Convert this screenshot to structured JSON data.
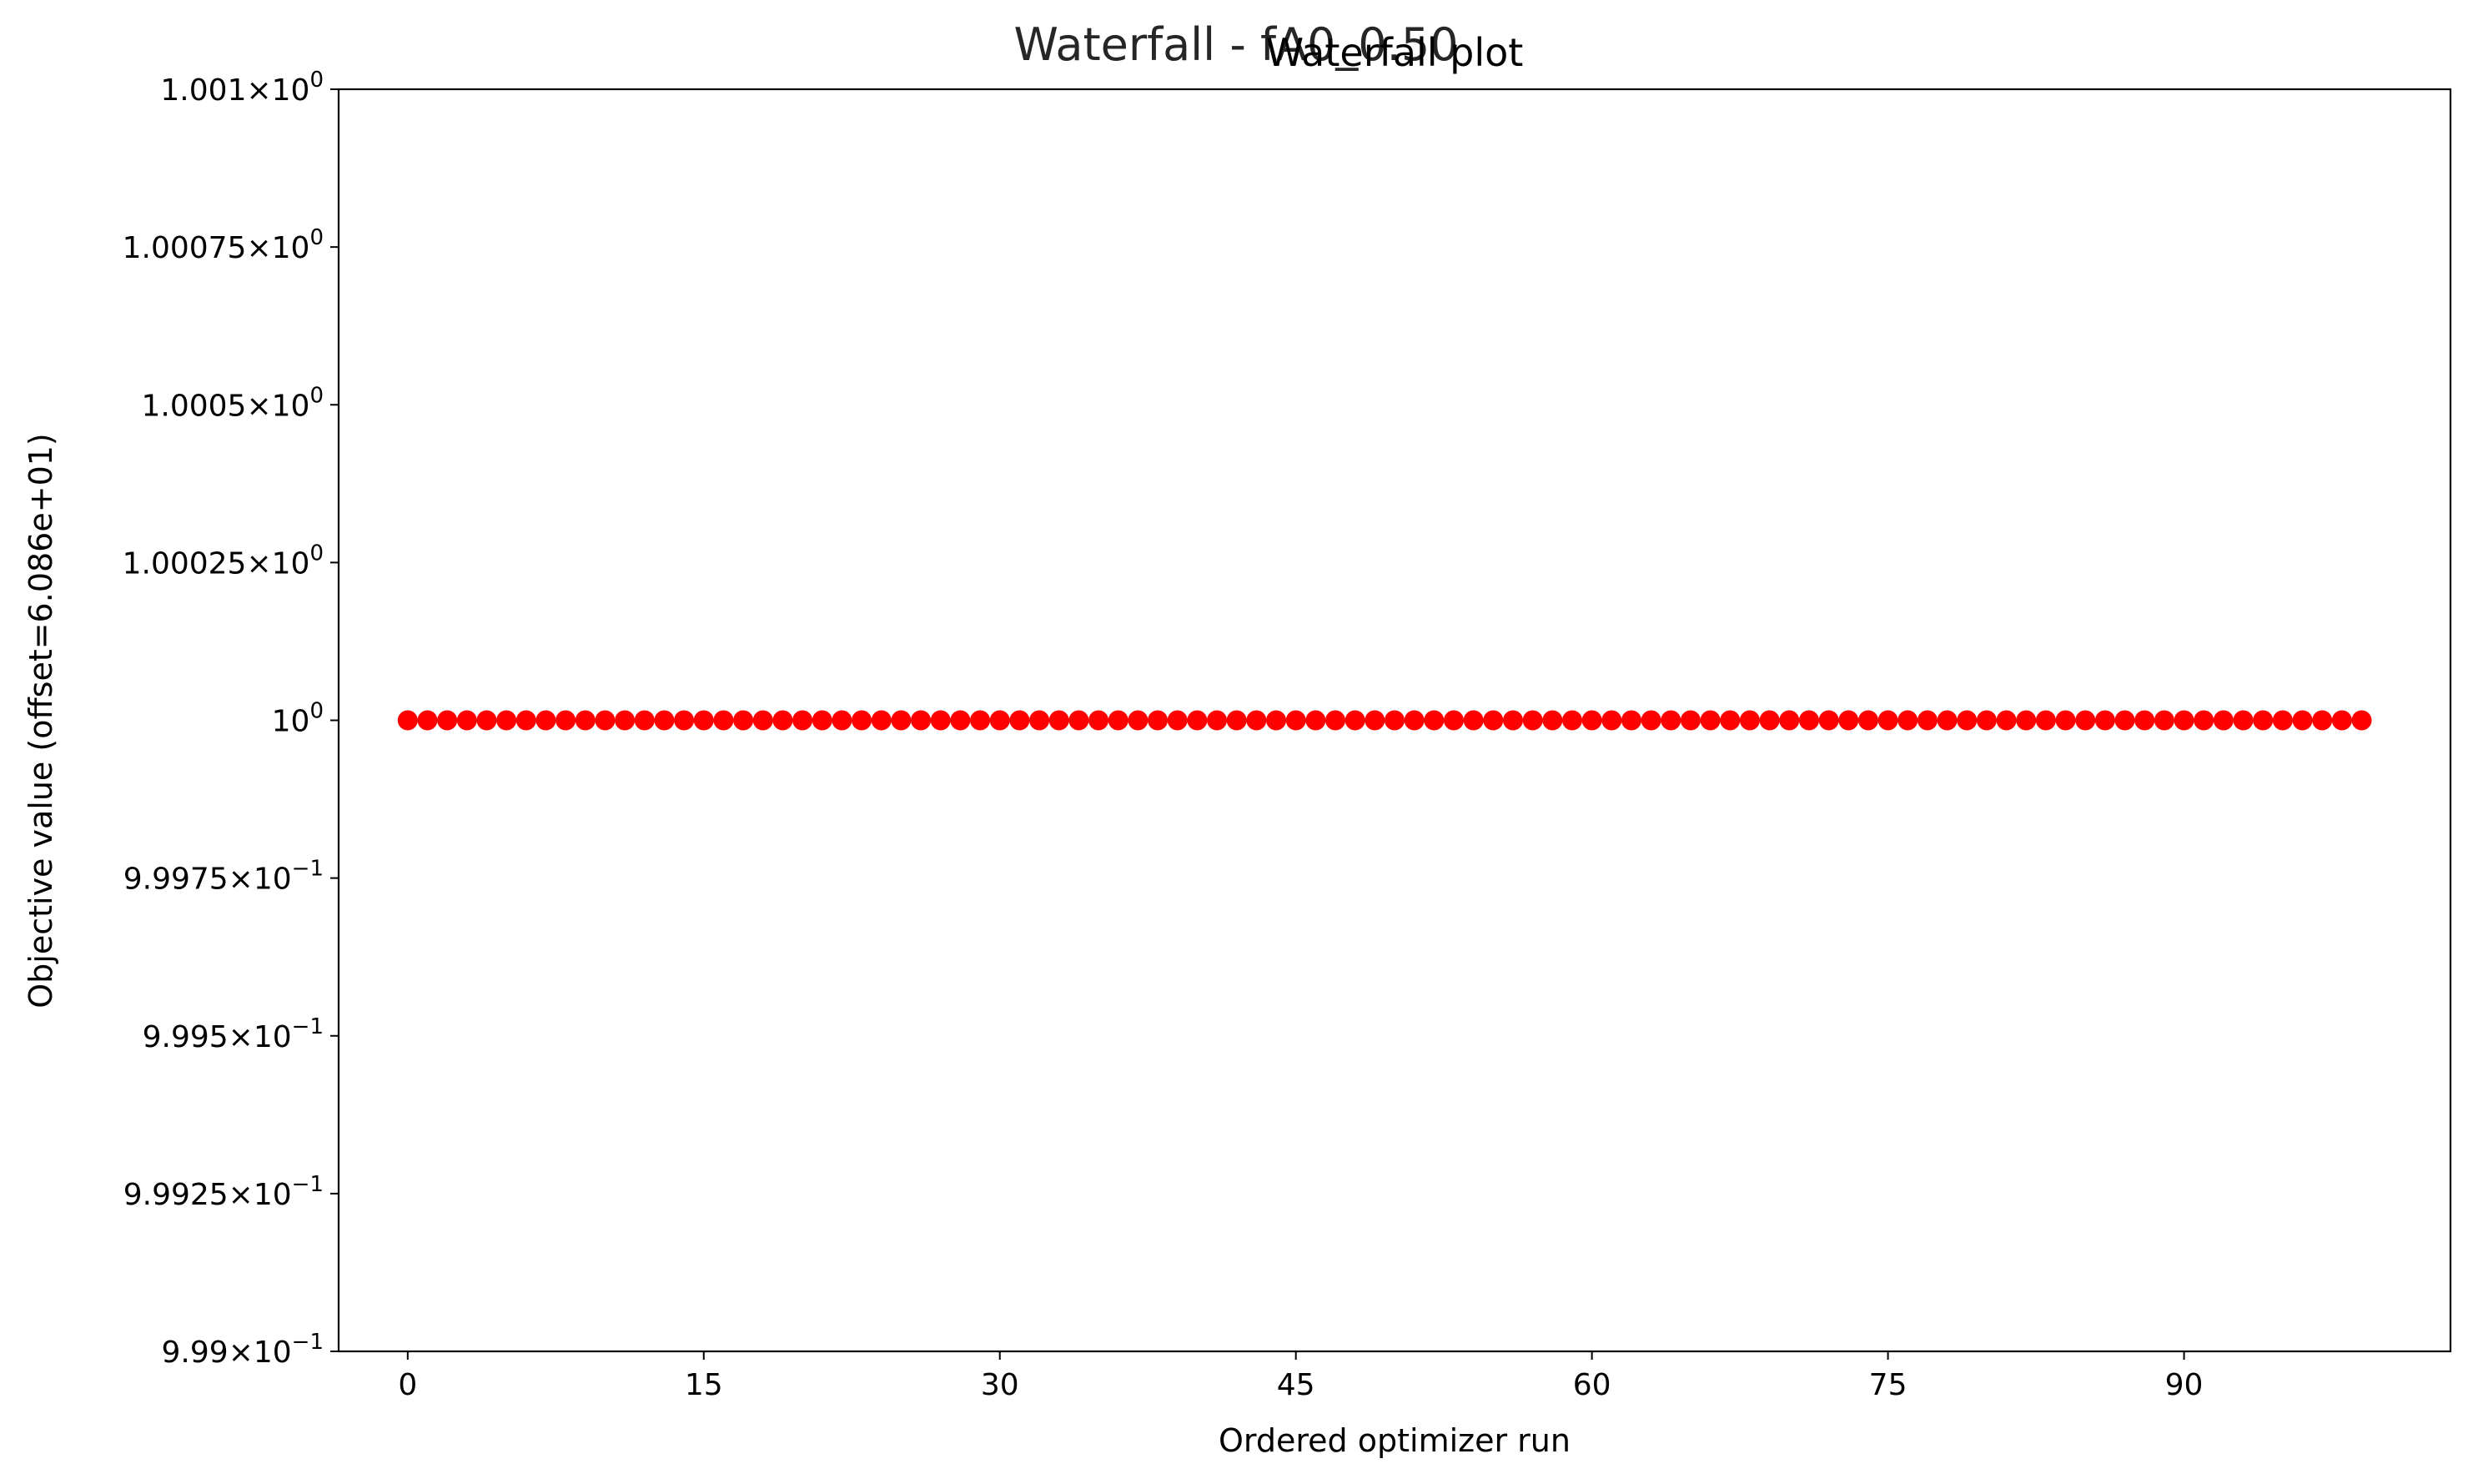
{
  "figure": {
    "suptitle": "Waterfall - fA0_0.50"
  },
  "colors": {
    "marker": "#ff0000",
    "suptitle": "#262626",
    "axes": "#000000",
    "background": "#ffffff"
  },
  "chart_data": {
    "type": "scatter",
    "title": "Waterfall plot",
    "xlabel": "Ordered optimizer run",
    "ylabel": "Objective value (offset=6.086e+01)",
    "xlim": [
      -3.5,
      103.5
    ],
    "ylim": [
      0.999,
      1.001
    ],
    "grid": false,
    "legend": "none",
    "x_ticks": [
      0,
      15,
      30,
      45,
      60,
      75,
      90
    ],
    "x_tick_labels": [
      "0",
      "15",
      "30",
      "45",
      "60",
      "75",
      "90"
    ],
    "y_ticks": [
      {
        "value": 1.001,
        "mantissa": "1.001",
        "exponent": "0"
      },
      {
        "value": 1.00075,
        "mantissa": "1.00075",
        "exponent": "0"
      },
      {
        "value": 1.0005,
        "mantissa": "1.0005",
        "exponent": "0"
      },
      {
        "value": 1.00025,
        "mantissa": "1.00025",
        "exponent": "0"
      },
      {
        "value": 1.0,
        "mantissa": "",
        "exponent": "0"
      },
      {
        "value": 0.99975,
        "mantissa": "9.9975",
        "exponent": "−1"
      },
      {
        "value": 0.9995,
        "mantissa": "9.995",
        "exponent": "−1"
      },
      {
        "value": 0.99925,
        "mantissa": "9.9925",
        "exponent": "−1"
      },
      {
        "value": 0.999,
        "mantissa": "9.99",
        "exponent": "−1"
      }
    ],
    "series": [
      {
        "x_start": 0,
        "x_end": 99,
        "y_constant": 1.0,
        "count": 100
      }
    ]
  }
}
